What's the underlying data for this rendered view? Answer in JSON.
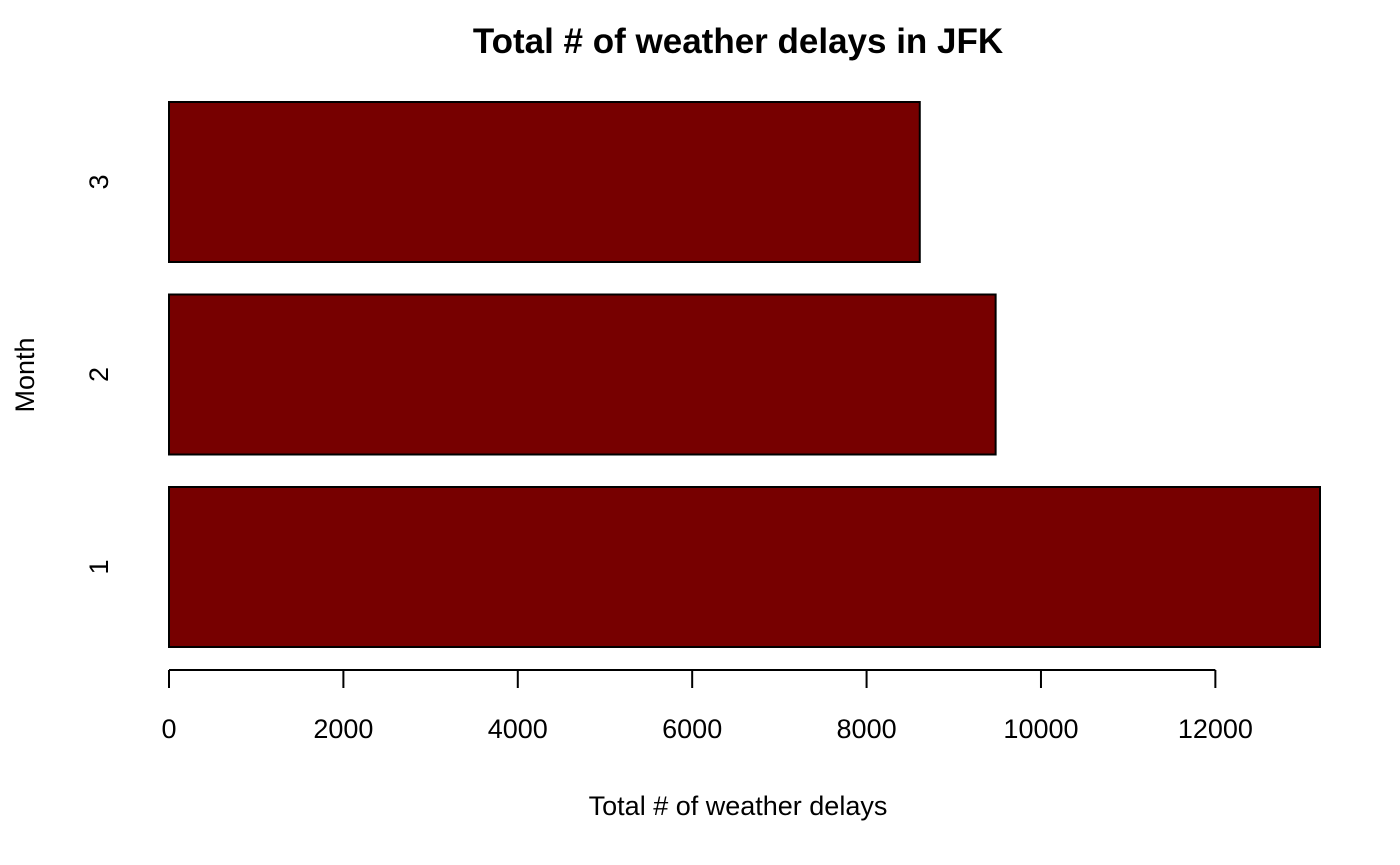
{
  "chart_data": {
    "type": "bar",
    "orientation": "horizontal",
    "title": "Total # of weather delays in JFK",
    "xlabel": "Total # of weather delays",
    "ylabel": "Month",
    "categories": [
      "1",
      "2",
      "3"
    ],
    "values": [
      13200,
      9480,
      8610
    ],
    "xlim": [
      0,
      13200
    ],
    "xticks": [
      0,
      2000,
      4000,
      6000,
      8000,
      10000,
      12000
    ],
    "bar_color": "#770000",
    "grid": false,
    "legend": "none"
  }
}
